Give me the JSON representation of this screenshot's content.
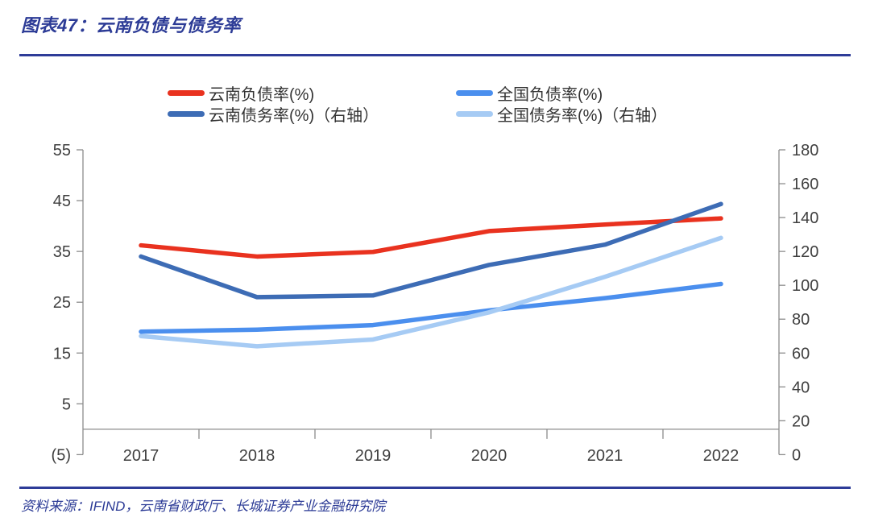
{
  "header": {
    "title": "图表47：云南负债与债务率"
  },
  "footer": {
    "source": "资料来源：IFIND，云南省财政厅、长城证券产业金融研究院"
  },
  "colors": {
    "accent_rule": "#2e3c98",
    "title_text": "#2c3b96",
    "axis_line": "#8c8c8c",
    "axis_label": "#3f3f3f",
    "negative_tick": "#ee3124"
  },
  "chart_data": {
    "type": "line",
    "title": "云南负债与债务率",
    "categories": [
      "2017",
      "2018",
      "2019",
      "2020",
      "2021",
      "2022"
    ],
    "series": [
      {
        "name": "云南负债率(%)",
        "axis": "left",
        "color": "#e9321f",
        "values": [
          36.2,
          34.0,
          34.9,
          39.0,
          40.3,
          41.5
        ]
      },
      {
        "name": "云南债务率(%)（右轴）",
        "axis": "right",
        "color": "#3d6cb5",
        "values": [
          117,
          93,
          94,
          112,
          124,
          148
        ]
      },
      {
        "name": "全国负债率(%)",
        "axis": "left",
        "color": "#4b8fee",
        "values": [
          19.2,
          19.6,
          20.5,
          23.4,
          25.8,
          28.6
        ]
      },
      {
        "name": "全国债务率(%)（右轴）",
        "axis": "right",
        "color": "#a6cbf4",
        "values": [
          70,
          64,
          68,
          84,
          105,
          128
        ]
      }
    ],
    "left_axis": {
      "min": -5,
      "max": 55,
      "step": 10,
      "tick_labels": [
        "55",
        "45",
        "35",
        "25",
        "15",
        "5",
        "(5)"
      ]
    },
    "right_axis": {
      "min": 0,
      "max": 180,
      "step": 20
    },
    "legend_position": "top",
    "grid": false
  }
}
